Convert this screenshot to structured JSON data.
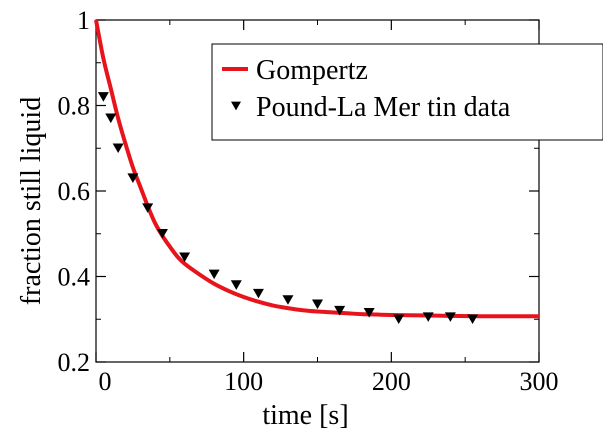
{
  "chart_data": {
    "type": "line",
    "xlabel": "time [s]",
    "ylabel": "fraction still liquid",
    "xlim": [
      0,
      300
    ],
    "ylim": [
      0.2,
      1.0
    ],
    "x_ticks": [
      "0",
      "100",
      "200",
      "300"
    ],
    "y_ticks": [
      "0.2",
      "0.4",
      "0.6",
      "0.8",
      "1"
    ],
    "x_tick_values": [
      0,
      100,
      200,
      300
    ],
    "y_tick_values": [
      0.2,
      0.4,
      0.6,
      0.8,
      1.0
    ],
    "grid": false,
    "legend_position": "top-right",
    "series": [
      {
        "name": "Gompertz",
        "kind": "line",
        "color": "#e8141b",
        "x": [
          0,
          5,
          10,
          15,
          20,
          25,
          30,
          35,
          40,
          45,
          50,
          55,
          60,
          70,
          80,
          90,
          100,
          110,
          120,
          130,
          140,
          150,
          160,
          170,
          180,
          190,
          200,
          220,
          240,
          260,
          280,
          300
        ],
        "y": [
          1.0,
          0.91,
          0.84,
          0.77,
          0.71,
          0.655,
          0.61,
          0.565,
          0.525,
          0.495,
          0.47,
          0.447,
          0.43,
          0.405,
          0.383,
          0.366,
          0.352,
          0.341,
          0.332,
          0.326,
          0.321,
          0.318,
          0.316,
          0.314,
          0.312,
          0.311,
          0.31,
          0.309,
          0.308,
          0.307,
          0.307,
          0.307
        ]
      },
      {
        "name": "Pound-La Mer tin data",
        "kind": "scatter",
        "marker": "triangle-down",
        "color": "#000000",
        "x": [
          5,
          10,
          15,
          25,
          35,
          45,
          60,
          80,
          95,
          110,
          130,
          150,
          165,
          185,
          205,
          225,
          240,
          255
        ],
        "y": [
          0.82,
          0.77,
          0.7,
          0.63,
          0.56,
          0.5,
          0.445,
          0.405,
          0.38,
          0.36,
          0.345,
          0.335,
          0.32,
          0.315,
          0.3,
          0.305,
          0.305,
          0.3
        ]
      }
    ]
  }
}
